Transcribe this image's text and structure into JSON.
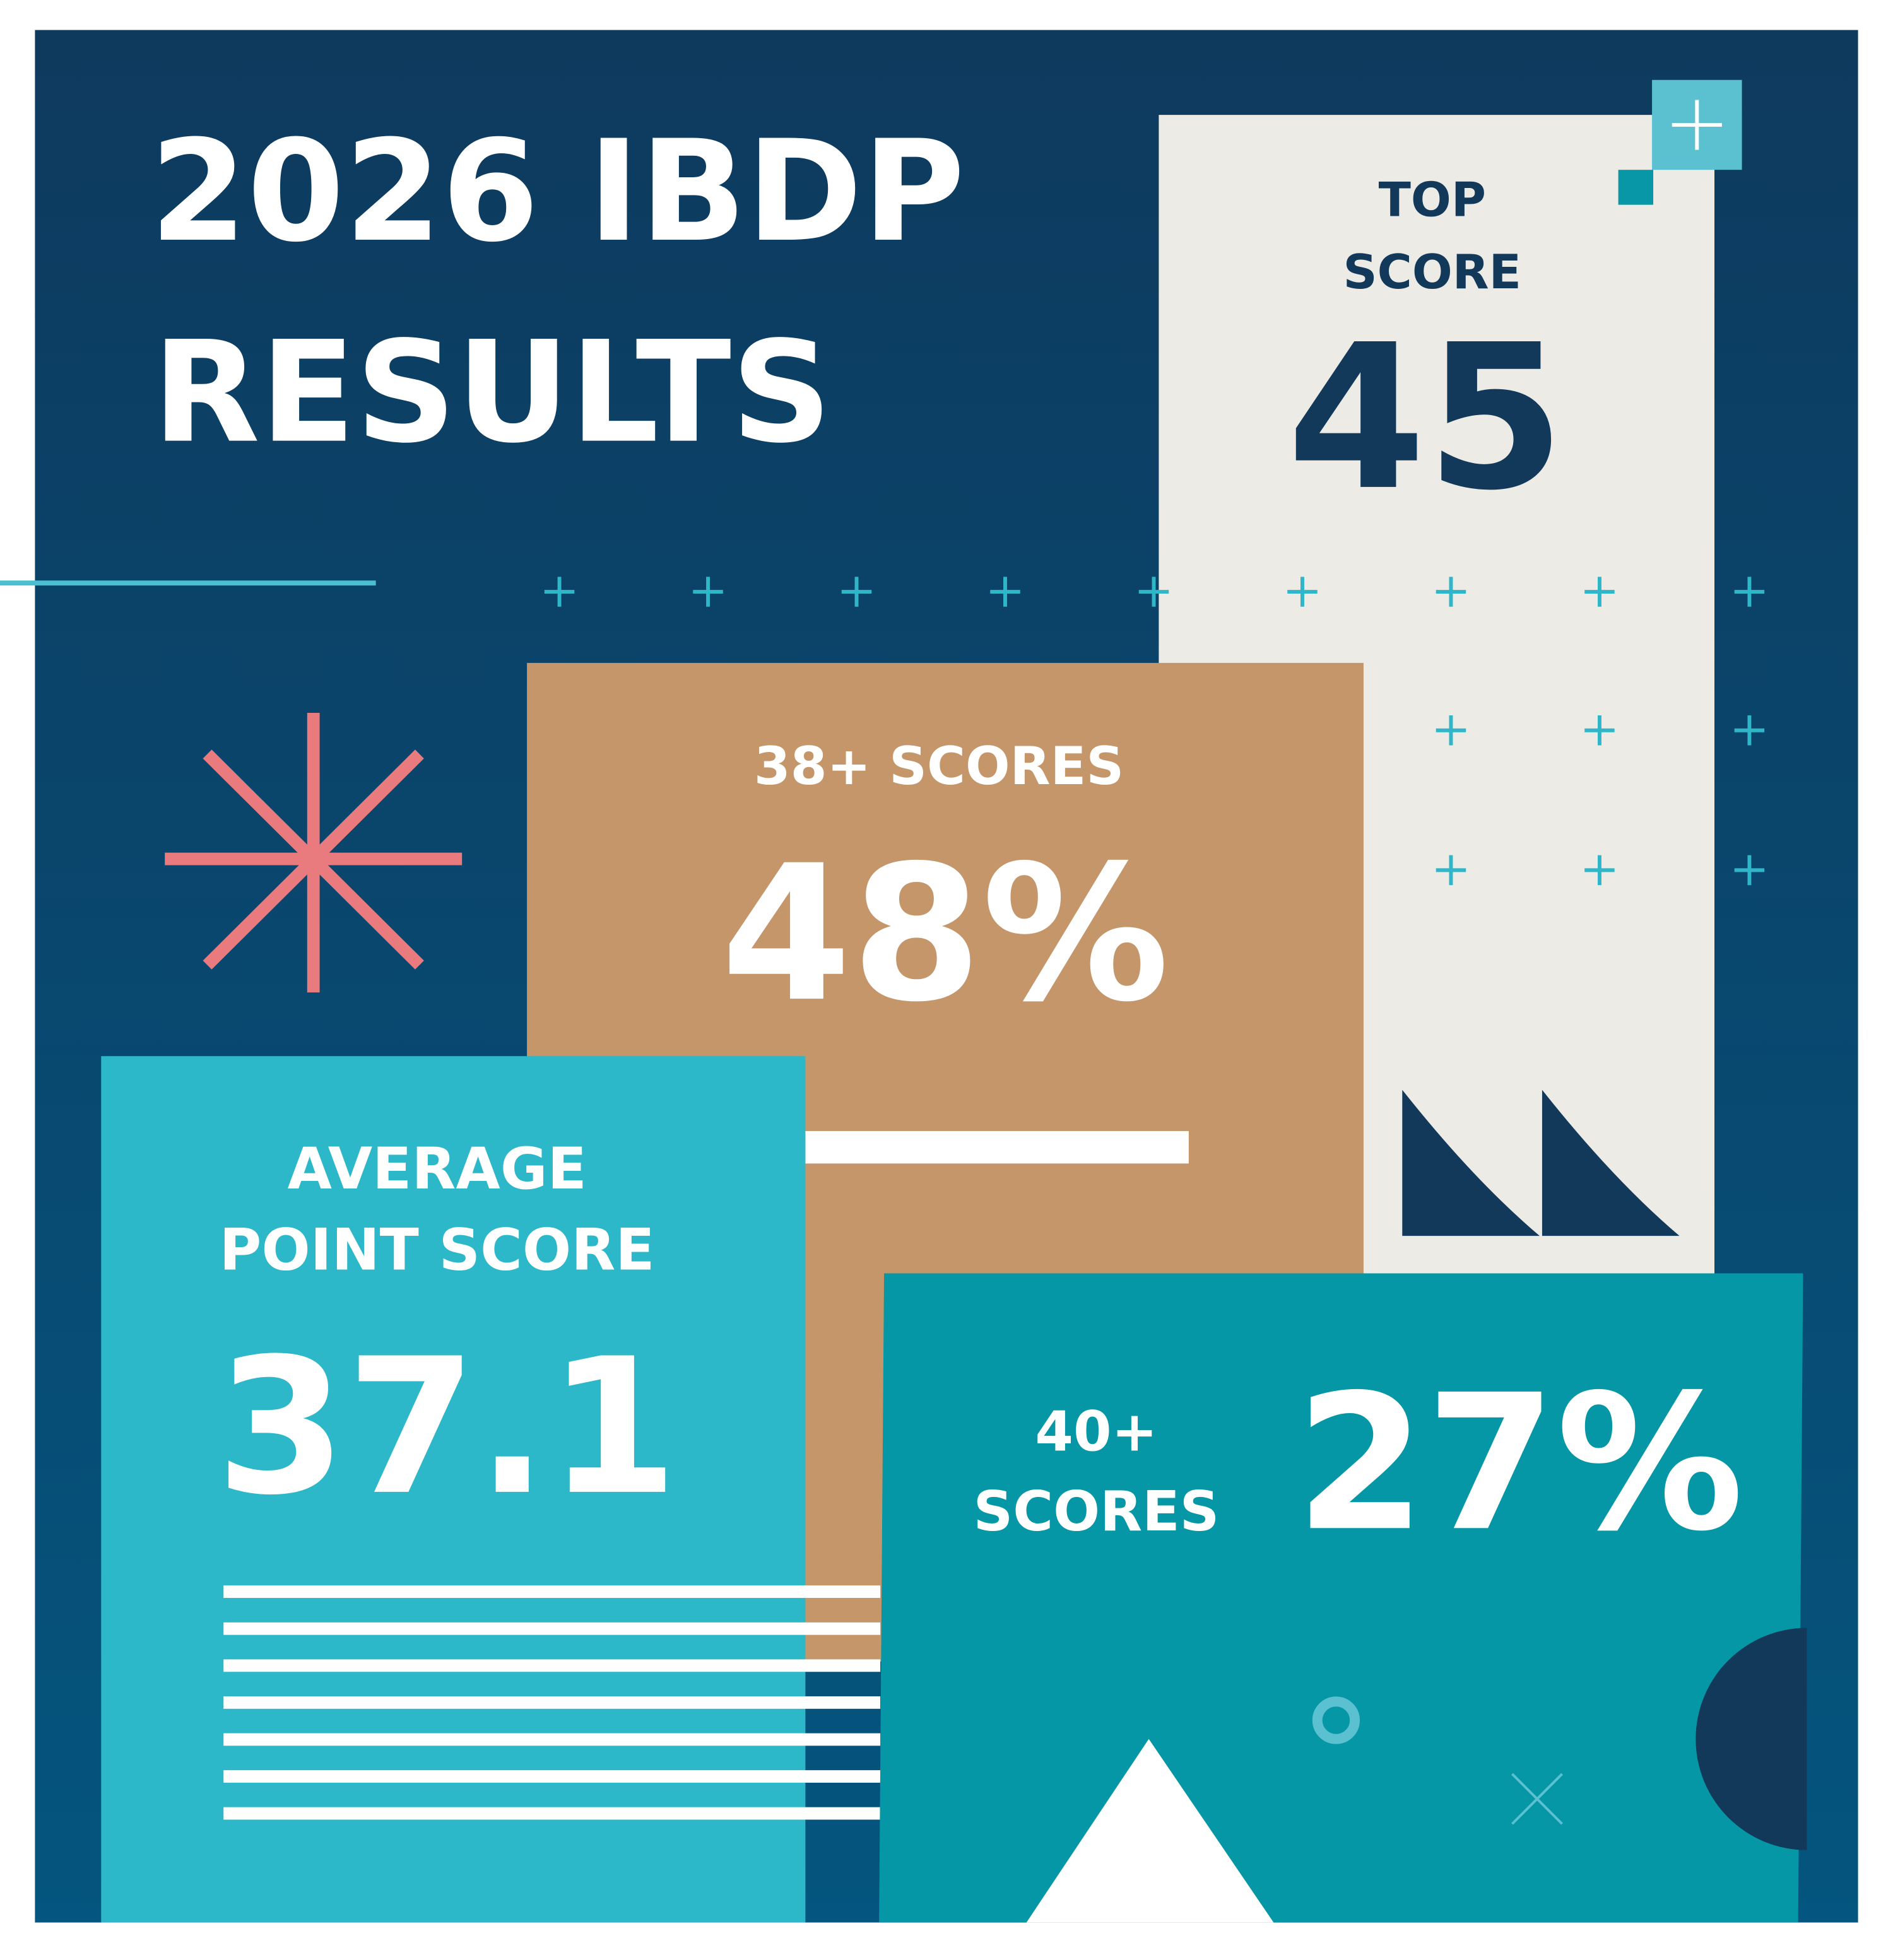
{
  "title": {
    "line1": "2026 IBDP",
    "line2": "RESULTS"
  },
  "cards": [
    {
      "label_lines": [
        "TOP",
        "SCORE"
      ],
      "value": "45"
    },
    {
      "label_lines": [
        "38+ SCORES"
      ],
      "value": "48%"
    },
    {
      "label_lines": [
        "AVERAGE",
        "POINT SCORE"
      ],
      "value": "37.1"
    },
    {
      "label_lines": [
        "40+",
        "SCORES"
      ],
      "value": "27%"
    }
  ]
}
